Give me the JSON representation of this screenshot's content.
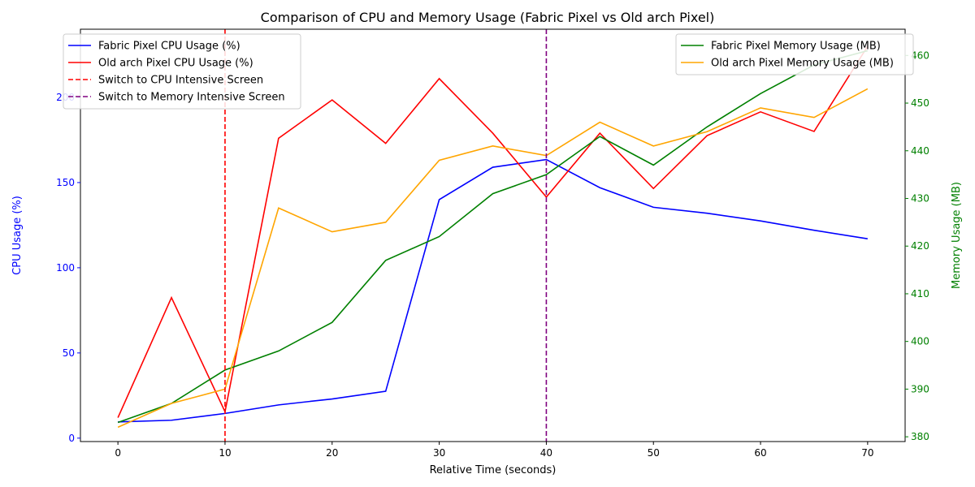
{
  "chart_data": {
    "type": "line",
    "title": "Comparison of CPU and Memory Usage (Fabric Pixel vs Old arch Pixel)",
    "xlabel": "Relative Time (seconds)",
    "ylabel_left": "CPU Usage (%)",
    "ylabel_right": "Memory Usage (MB)",
    "xlim": [
      -3.5,
      73.5
    ],
    "ylim_left": [
      -2,
      240
    ],
    "ylim_right": [
      379,
      465.5
    ],
    "xticks": [
      0,
      10,
      20,
      30,
      40,
      50,
      60,
      70
    ],
    "yticks_left": [
      0,
      50,
      100,
      150,
      200
    ],
    "yticks_right": [
      380,
      390,
      400,
      410,
      420,
      430,
      440,
      450,
      460
    ],
    "x": [
      0,
      5,
      10,
      15,
      20,
      25,
      30,
      35,
      40,
      45,
      50,
      55,
      60,
      65,
      70
    ],
    "cpu_series": [
      {
        "name": "Fabric Pixel CPU Usage (%)",
        "color": "#0000ff",
        "values": [
          9.5,
          10.5,
          14.5,
          19.5,
          23,
          27.5,
          140,
          159,
          163.5,
          147,
          135.5,
          132,
          127.5,
          122,
          117
        ]
      },
      {
        "name": "Old arch Pixel CPU Usage (%)",
        "color": "#ff0000",
        "values": [
          12,
          82.5,
          15.5,
          176,
          198.5,
          173,
          211,
          179,
          141.5,
          179,
          146.5,
          177.5,
          191.5,
          180,
          230
        ]
      }
    ],
    "memory_series": [
      {
        "name": "Fabric Pixel Memory Usage (MB)",
        "color": "#008000",
        "values": [
          383,
          387,
          394,
          398,
          404,
          417,
          422,
          431,
          435,
          443,
          437,
          445,
          452,
          458,
          461
        ]
      },
      {
        "name": "Old arch Pixel Memory Usage (MB)",
        "color": "#ffa500",
        "values": [
          382,
          387,
          390,
          428,
          423,
          425,
          438,
          441,
          439,
          446,
          441,
          444,
          449,
          447,
          453
        ]
      }
    ],
    "vlines": [
      {
        "name": "Switch to CPU Intensive Screen",
        "x": 10,
        "color": "#ff0000"
      },
      {
        "name": "Switch to Memory Intensive Screen",
        "x": 40,
        "color": "#800080"
      }
    ],
    "legend_left_placement": "top-left",
    "legend_right_placement": "top-right",
    "grid": false,
    "left_axis_color": "#0000ff",
    "right_axis_color": "#008000"
  }
}
